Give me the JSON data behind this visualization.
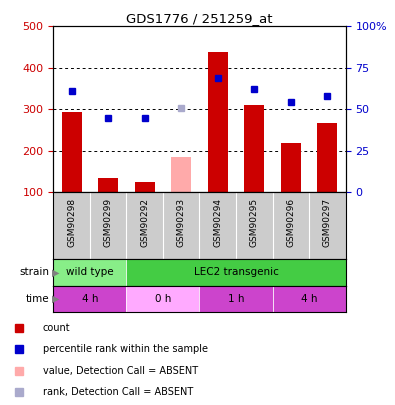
{
  "title": "GDS1776 / 251259_at",
  "samples": [
    "GSM90298",
    "GSM90299",
    "GSM90292",
    "GSM90293",
    "GSM90294",
    "GSM90295",
    "GSM90296",
    "GSM90297"
  ],
  "bar_values": [
    293,
    135,
    125,
    null,
    437,
    310,
    218,
    268
  ],
  "bar_absent_values": [
    null,
    null,
    null,
    185,
    null,
    null,
    null,
    null
  ],
  "rank_values": [
    345,
    278,
    278,
    null,
    375,
    349,
    318,
    333
  ],
  "rank_absent_values": [
    null,
    null,
    null,
    303,
    null,
    null,
    null,
    null
  ],
  "bar_color": "#cc0000",
  "bar_absent_color": "#ffaaaa",
  "rank_color": "#0000cc",
  "rank_absent_color": "#aaaacc",
  "ylim_left": [
    100,
    500
  ],
  "ylim_right": [
    0,
    100
  ],
  "yticks_left": [
    100,
    200,
    300,
    400,
    500
  ],
  "yticks_right": [
    0,
    25,
    50,
    75,
    100
  ],
  "ytick_labels_right": [
    "0",
    "25",
    "50",
    "75",
    "100%"
  ],
  "grid_values": [
    200,
    300,
    400
  ],
  "strain_groups": [
    {
      "label": "wild type",
      "start": 0,
      "end": 2,
      "color": "#88ee88"
    },
    {
      "label": "LEC2 transgenic",
      "start": 2,
      "end": 8,
      "color": "#44cc44"
    }
  ],
  "time_groups": [
    {
      "label": "4 h",
      "start": 0,
      "end": 2,
      "color": "#cc44cc"
    },
    {
      "label": "0 h",
      "start": 2,
      "end": 4,
      "color": "#ffaaff"
    },
    {
      "label": "1 h",
      "start": 4,
      "end": 6,
      "color": "#cc44cc"
    },
    {
      "label": "4 h",
      "start": 6,
      "end": 8,
      "color": "#cc44cc"
    }
  ],
  "legend_items": [
    {
      "label": "count",
      "color": "#cc0000",
      "marker": "s"
    },
    {
      "label": "percentile rank within the sample",
      "color": "#0000cc",
      "marker": "s"
    },
    {
      "label": "value, Detection Call = ABSENT",
      "color": "#ffaaaa",
      "marker": "s"
    },
    {
      "label": "rank, Detection Call = ABSENT",
      "color": "#aaaacc",
      "marker": "s"
    }
  ],
  "bar_width": 0.55,
  "tick_color_left": "#cc0000",
  "tick_color_right": "#0000cc",
  "label_bg_color": "#cccccc",
  "chart_bg": "#ffffff"
}
